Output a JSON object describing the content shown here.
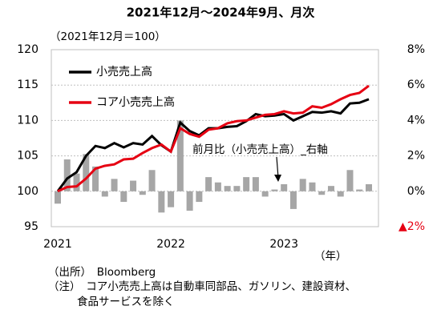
{
  "chart_data": {
    "type": "line",
    "title": "2021年12月～2024年9月、月次",
    "subtitle": "（2021年12月＝100）",
    "categories": [
      "2021",
      null,
      null,
      null,
      null,
      null,
      null,
      null,
      null,
      null,
      null,
      null,
      "2022",
      null,
      null,
      null,
      null,
      null,
      null,
      null,
      null,
      null,
      null,
      null,
      "2023",
      null,
      null,
      null,
      null,
      null,
      null,
      null,
      null,
      null
    ],
    "x_unit_label": "（年）",
    "series": [
      {
        "name": "小売売上高",
        "color": "#000000",
        "values": [
          100,
          101.8,
          102.7,
          105,
          106.4,
          106.1,
          106.8,
          106.2,
          106.8,
          106.6,
          107.8,
          106.5,
          105.6,
          109.7,
          108.5,
          107.9,
          108.9,
          108.9,
          109.1,
          109.2,
          109.9,
          110.9,
          110.6,
          110.7,
          110.9,
          110.0,
          110.6,
          111.2,
          111.1,
          111.3,
          111.0,
          112.4,
          112.5,
          113.0
        ]
      },
      {
        "name": "コア小売売上高",
        "color": "#e60012",
        "values": [
          100,
          100.6,
          100.7,
          101.8,
          103.2,
          103.6,
          103.8,
          104.5,
          104.6,
          105.4,
          106.1,
          106.6,
          105.6,
          108.9,
          108.1,
          107.7,
          108.7,
          108.9,
          109.6,
          109.9,
          110.0,
          110.4,
          110.8,
          110.9,
          111.3,
          111.0,
          111.1,
          112.0,
          111.8,
          112.3,
          113.0,
          113.6,
          113.9,
          114.9
        ]
      },
      {
        "name": "前月比（小売売上高）_右軸",
        "type": "bar",
        "axis": "y2",
        "color": "#a6a6a6",
        "values": [
          -0.7,
          1.8,
          1.0,
          2.1,
          1.4,
          -0.3,
          0.7,
          -0.6,
          0.6,
          -0.2,
          1.2,
          -1.2,
          -0.9,
          4.0,
          -1.1,
          -0.6,
          0.8,
          0.5,
          0.3,
          0.3,
          0.8,
          0.8,
          -0.3,
          0.1,
          0.4,
          -1.0,
          0.7,
          0.5,
          -0.2,
          0.3,
          -0.3,
          1.2,
          0.1,
          0.4
        ]
      }
    ],
    "ylim": [
      95,
      120
    ],
    "yticks": [
      95,
      100,
      105,
      110,
      115,
      120
    ],
    "y2lim": [
      -2,
      8
    ],
    "y2ticks": [
      {
        "value": -2,
        "label": "▲2%"
      },
      {
        "value": 0,
        "label": "0%"
      },
      {
        "value": 2,
        "label": "2%"
      },
      {
        "value": 4,
        "label": "4%"
      },
      {
        "value": 6,
        "label": "6%"
      },
      {
        "value": 8,
        "label": "8%"
      }
    ],
    "y2_negative_label_color": "#e60012",
    "grid": true,
    "notes": [
      "（出所）　Bloomberg",
      "（注）　コア小売売上高は自動車同部品、ガソリン、建設資材、",
      "食品サービスを除く"
    ]
  }
}
